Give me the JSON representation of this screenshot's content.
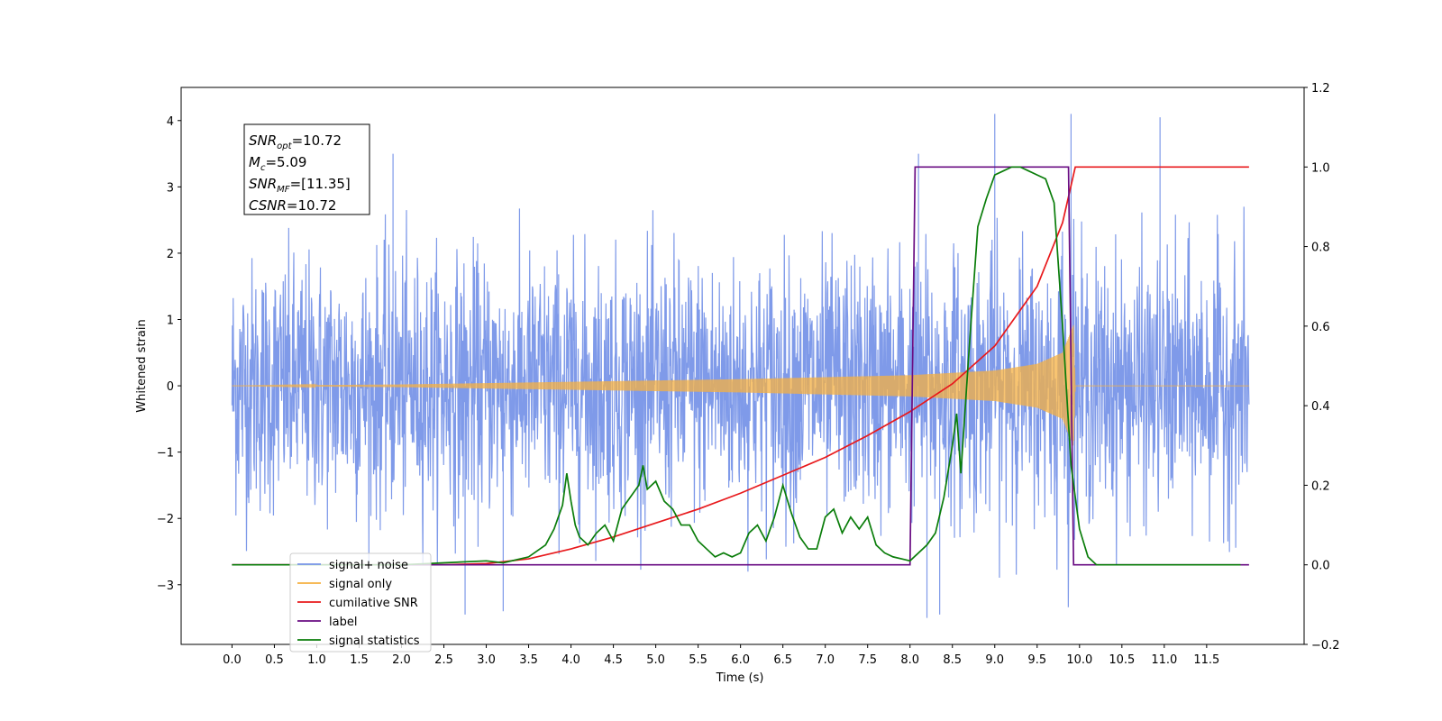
{
  "chart_data": {
    "type": "line",
    "xlabel": "Time (s)",
    "ylabel": "Whitened strain",
    "xlim": [
      -0.6,
      12.65
    ],
    "ylim": [
      -3.9,
      4.5
    ],
    "ylim_right": [
      -0.2,
      1.2
    ],
    "x_ticks": [
      "0.0",
      "0.5",
      "1.0",
      "1.5",
      "2.0",
      "2.5",
      "3.0",
      "3.5",
      "4.0",
      "4.5",
      "5.0",
      "5.5",
      "6.0",
      "6.5",
      "7.0",
      "7.5",
      "8.0",
      "8.5",
      "9.0",
      "9.5",
      "10.0",
      "10.5",
      "11.0",
      "11.5"
    ],
    "y_ticks_left": [
      "−3",
      "−2",
      "−1",
      "0",
      "1",
      "2",
      "3",
      "4"
    ],
    "y_ticks_right": [
      "−0.2",
      "0.0",
      "0.2",
      "0.4",
      "0.6",
      "0.8",
      "1.0",
      "1.2"
    ],
    "legend_position": "lower-left",
    "annotation": {
      "lines": [
        {
          "base": "SNR",
          "sub": "opt",
          "value": "=10.72"
        },
        {
          "base": "M",
          "sub": "c",
          "value": "=5.09"
        },
        {
          "base": "SNR",
          "sub": "MF",
          "value": "=[11.35]"
        },
        {
          "base": "CSNR",
          "sub": "",
          "value": "=10.72"
        }
      ]
    },
    "series": [
      {
        "name": "signal+ noise",
        "color": "#7895e8",
        "axis": "left",
        "description": "whitened strain noise, spans 0.0 to 12.0 s",
        "x_range": [
          0.0,
          12.0
        ],
        "amplitude_envelope": 2.6,
        "peaks": [
          [
            1.9,
            3.5
          ],
          [
            8.1,
            3.5
          ],
          [
            9.0,
            4.1
          ],
          [
            9.9,
            4.1
          ],
          [
            10.95,
            4.05
          ],
          [
            8.2,
            -3.5
          ],
          [
            8.35,
            -3.45
          ],
          [
            3.2,
            -3.4
          ],
          [
            2.75,
            -3.45
          ]
        ]
      },
      {
        "name": "signal only",
        "color": "#f5b041",
        "axis": "left",
        "x_range": [
          0.0,
          12.0
        ],
        "chirp_envelope": [
          [
            0.0,
            0.0
          ],
          [
            2.0,
            0.02
          ],
          [
            4.0,
            0.06
          ],
          [
            6.0,
            0.1
          ],
          [
            8.0,
            0.16
          ],
          [
            9.0,
            0.23
          ],
          [
            9.5,
            0.33
          ],
          [
            9.8,
            0.5
          ],
          [
            9.93,
            0.92
          ],
          [
            9.95,
            0.0
          ],
          [
            12.0,
            0.0
          ]
        ]
      },
      {
        "name": "cumilative SNR",
        "color": "#e8191c",
        "axis": "right",
        "x": [
          0.0,
          2.5,
          3.0,
          3.5,
          4.0,
          4.5,
          5.0,
          5.5,
          6.0,
          6.5,
          7.0,
          7.5,
          8.0,
          8.5,
          9.0,
          9.5,
          9.8,
          9.95,
          10.0,
          12.0
        ],
        "y": [
          0.0,
          0.0,
          0.003,
          0.015,
          0.04,
          0.07,
          0.105,
          0.14,
          0.18,
          0.225,
          0.27,
          0.325,
          0.385,
          0.455,
          0.55,
          0.7,
          0.86,
          1.0,
          1.0,
          1.0
        ]
      },
      {
        "name": "label",
        "color": "#6a0d83",
        "axis": "right",
        "x": [
          0.0,
          8.0,
          8.06,
          9.87,
          9.93,
          12.0
        ],
        "y": [
          0.0,
          0.0,
          1.0,
          1.0,
          0.0,
          0.0
        ]
      },
      {
        "name": "signal statistics",
        "color": "#0a7d0a",
        "axis": "right",
        "x": [
          0.0,
          2.0,
          2.5,
          3.0,
          3.2,
          3.5,
          3.7,
          3.8,
          3.9,
          3.95,
          4.0,
          4.05,
          4.1,
          4.2,
          4.3,
          4.4,
          4.5,
          4.6,
          4.7,
          4.8,
          4.85,
          4.9,
          5.0,
          5.1,
          5.2,
          5.3,
          5.4,
          5.5,
          5.6,
          5.7,
          5.8,
          5.9,
          6.0,
          6.1,
          6.2,
          6.3,
          6.4,
          6.5,
          6.6,
          6.7,
          6.8,
          6.9,
          7.0,
          7.1,
          7.2,
          7.3,
          7.4,
          7.5,
          7.6,
          7.7,
          7.8,
          7.9,
          8.0,
          8.1,
          8.2,
          8.3,
          8.4,
          8.5,
          8.55,
          8.6,
          8.7,
          8.8,
          8.9,
          9.0,
          9.1,
          9.2,
          9.3,
          9.4,
          9.5,
          9.6,
          9.7,
          9.8,
          9.9,
          10.0,
          10.1,
          10.2,
          10.5,
          11.9
        ],
        "y": [
          0.0,
          0.0,
          0.005,
          0.01,
          0.005,
          0.02,
          0.05,
          0.09,
          0.15,
          0.23,
          0.16,
          0.1,
          0.07,
          0.05,
          0.08,
          0.1,
          0.06,
          0.14,
          0.17,
          0.2,
          0.25,
          0.19,
          0.21,
          0.16,
          0.14,
          0.1,
          0.1,
          0.06,
          0.04,
          0.02,
          0.03,
          0.02,
          0.03,
          0.08,
          0.1,
          0.06,
          0.12,
          0.2,
          0.13,
          0.07,
          0.04,
          0.04,
          0.12,
          0.14,
          0.08,
          0.12,
          0.09,
          0.12,
          0.05,
          0.03,
          0.02,
          0.015,
          0.01,
          0.03,
          0.05,
          0.08,
          0.17,
          0.3,
          0.38,
          0.23,
          0.55,
          0.85,
          0.92,
          0.98,
          0.99,
          1.0,
          1.0,
          0.99,
          0.98,
          0.97,
          0.91,
          0.6,
          0.25,
          0.09,
          0.02,
          0.0,
          0.0,
          0.0
        ]
      }
    ]
  }
}
